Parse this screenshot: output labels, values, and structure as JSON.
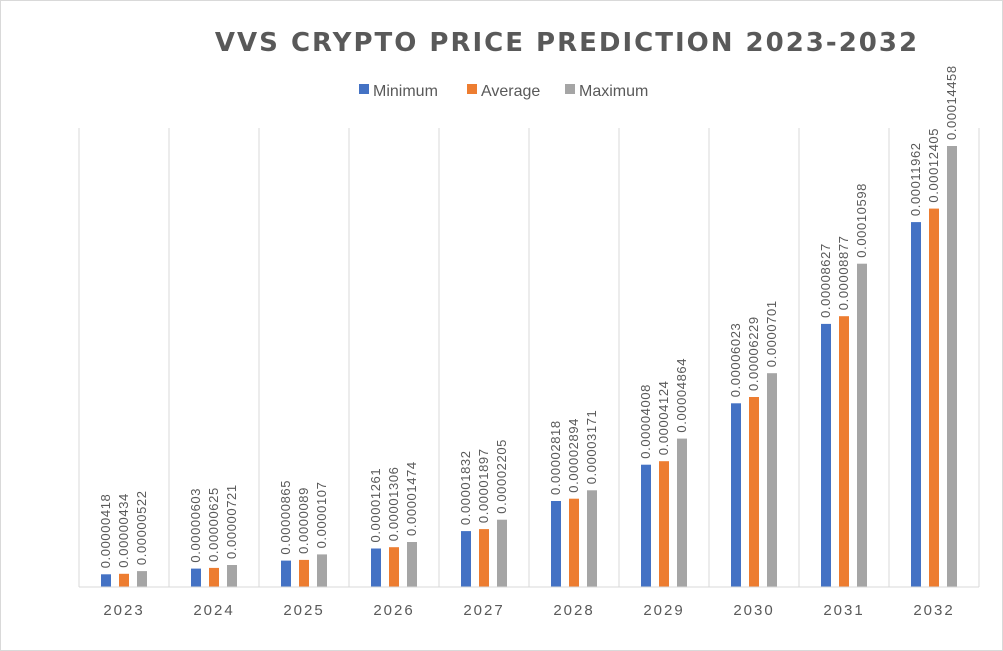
{
  "chart_data": {
    "type": "bar",
    "title": "VVS CRYPTO PRICE PREDICTION 2023-2032",
    "xlabel": "",
    "ylabel": "",
    "grid": "vertical",
    "legend_position": "top",
    "categories": [
      "2023",
      "2024",
      "2025",
      "2026",
      "2027",
      "2028",
      "2029",
      "2030",
      "2031",
      "2032"
    ],
    "series": [
      {
        "name": "Minimum",
        "color": "#4472C4",
        "values": [
          4.18e-06,
          6.03e-06,
          8.65e-06,
          1.261e-05,
          1.832e-05,
          2.818e-05,
          4.008e-05,
          6.023e-05,
          8.627e-05,
          0.00011962
        ],
        "labels": [
          "0.00000418",
          "0.00000603",
          "0.00000865",
          "0.00001261",
          "0.00001832",
          "0.00002818",
          "0.00004008",
          "0.00006023",
          "0.00008627",
          "0.00011962"
        ]
      },
      {
        "name": "Average",
        "color": "#ED7D31",
        "values": [
          4.34e-06,
          6.25e-06,
          8.9e-06,
          1.306e-05,
          1.897e-05,
          2.894e-05,
          4.124e-05,
          6.229e-05,
          8.877e-05,
          0.00012405
        ],
        "labels": [
          "0.00000434",
          "0.00000625",
          "0.0000089",
          "0.00001306",
          "0.00001897",
          "0.00002894",
          "0.00004124",
          "0.00006229",
          "0.00008877",
          "0.00012405"
        ]
      },
      {
        "name": "Maximum",
        "color": "#A5A5A5",
        "values": [
          5.22e-06,
          7.21e-06,
          1.07e-05,
          1.474e-05,
          2.205e-05,
          3.171e-05,
          4.864e-05,
          7.01e-05,
          0.00010598,
          0.00014458
        ],
        "labels": [
          "0.00000522",
          "0.00000721",
          "0.0000107",
          "0.00001474",
          "0.00002205",
          "0.00003171",
          "0.00004864",
          "0.0000701",
          "0.00010598",
          "0.00014458"
        ]
      }
    ]
  }
}
